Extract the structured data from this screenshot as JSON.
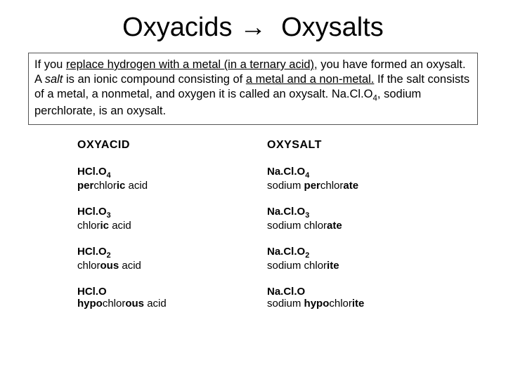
{
  "title_html": "Oxyacids &#8594;&nbsp;&nbsp;Oxysalts",
  "intro_html": "If you <span class='u'>replace hydrogen with a metal (in a ternary acid),</span> you have formed an oxysalt. A <span class='i'>salt</span> is an ionic compound consisting of <span class='u'>a metal and a non-metal.</span>  If the salt consists of a metal, a nonmetal, and oxygen it is called an oxysalt. Na.Cl.O<sub>4</sub>, sodium perchlorate, is an oxysalt.",
  "header": {
    "left": "OXYACID",
    "right": "OXYSALT"
  },
  "rows": [
    {
      "left_formula_html": "HCl.O<sub>4</sub>",
      "left_name_html": "<span class='b'>per</span>chlor<span class='b'>ic</span> acid",
      "right_formula_html": "Na.Cl.O<sub>4</sub>",
      "right_name_html": "sodium <span class='b'>per</span>chlor<span class='b'>ate</span>"
    },
    {
      "left_formula_html": "HCl.O<sub>3</sub>",
      "left_name_html": "chlor<span class='b'>ic</span> acid",
      "right_formula_html": "Na.Cl.O<sub>3</sub>",
      "right_name_html": "sodium chlor<span class='b'>ate</span>"
    },
    {
      "left_formula_html": "HCl.O<sub>2</sub>",
      "left_name_html": "chlor<span class='b'>ous</span> acid",
      "right_formula_html": "Na.Cl.O<sub>2</sub>",
      "right_name_html": "sodium chlor<span class='b'>ite</span>"
    },
    {
      "left_formula_html": "HCl.O",
      "left_name_html": "<span class='b'>hypo</span>chlor<span class='b'>ous</span> acid",
      "right_formula_html": "Na.Cl.O",
      "right_name_html": "sodium <span class='b'>hypo</span>chlor<span class='b'>ite</span>"
    }
  ]
}
